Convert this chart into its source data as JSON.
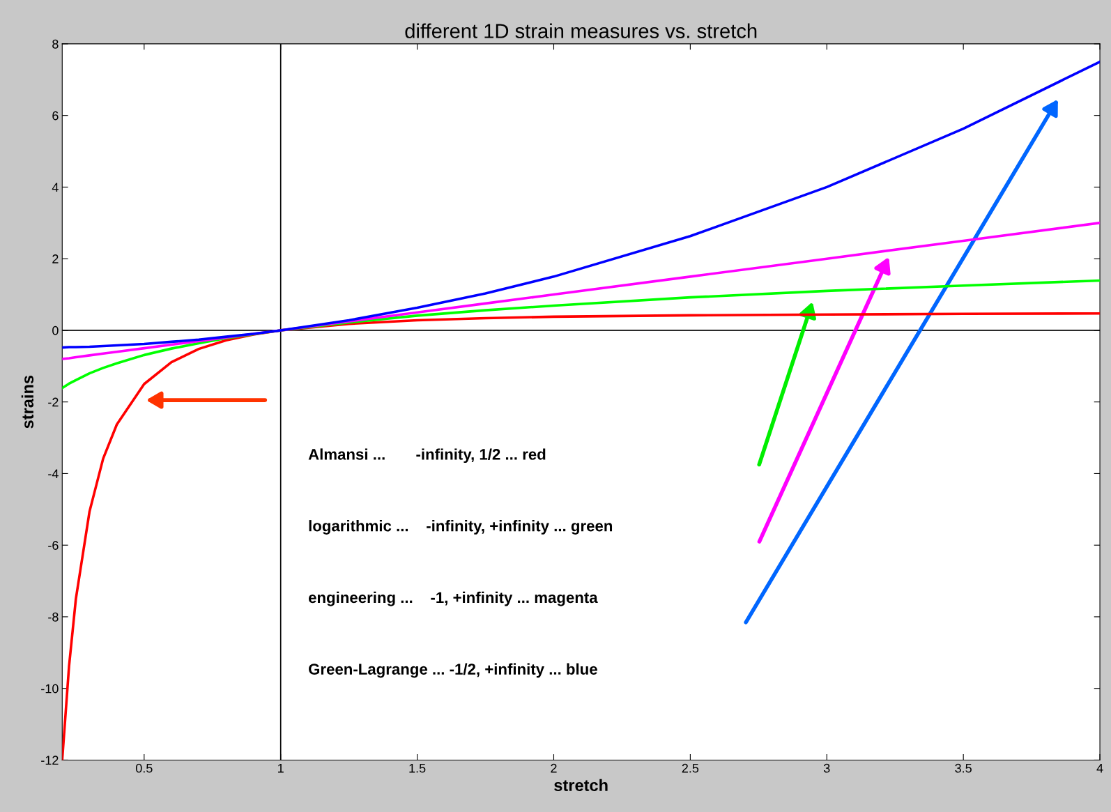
{
  "chart_data": {
    "type": "line",
    "title": "different 1D strain measures vs. stretch",
    "xlabel": "stretch",
    "ylabel": "strains",
    "x": [
      0.2,
      0.225,
      0.25,
      0.3,
      0.35,
      0.4,
      0.5,
      0.6,
      0.7,
      0.8,
      0.9,
      1,
      1.25,
      1.5,
      1.75,
      2,
      2.5,
      3,
      3.5,
      4
    ],
    "series": [
      {
        "color": "#ff0000",
        "values": [
          -12,
          -9.38,
          -7.5,
          -5.06,
          -3.58,
          -2.63,
          -1.5,
          -0.89,
          -0.52,
          -0.28,
          -0.12,
          0,
          0.18,
          0.28,
          0.34,
          0.38,
          0.42,
          0.44,
          0.46,
          0.47
        ]
      },
      {
        "color": "#00ff00",
        "values": [
          -1.61,
          -1.49,
          -1.39,
          -1.2,
          -1.05,
          -0.92,
          -0.69,
          -0.51,
          -0.36,
          -0.22,
          -0.11,
          0,
          0.22,
          0.41,
          0.56,
          0.69,
          0.92,
          1.1,
          1.25,
          1.39
        ]
      },
      {
        "color": "#ff00ff",
        "values": [
          -0.8,
          -0.78,
          -0.75,
          -0.7,
          -0.65,
          -0.6,
          -0.5,
          -0.4,
          -0.3,
          -0.2,
          -0.1,
          0,
          0.25,
          0.5,
          0.75,
          1,
          1.5,
          2,
          2.5,
          3
        ]
      },
      {
        "color": "#0000ff",
        "values": [
          -0.48,
          -0.47,
          -0.47,
          -0.46,
          -0.44,
          -0.42,
          -0.38,
          -0.32,
          -0.26,
          -0.18,
          -0.1,
          0,
          0.28,
          0.63,
          1.03,
          1.5,
          2.63,
          4,
          5.63,
          7.5
        ]
      }
    ],
    "xlim": [
      0.2,
      4
    ],
    "ylim": [
      -12,
      8
    ],
    "xticks": [
      0.5,
      1,
      1.5,
      2,
      2.5,
      3,
      3.5,
      4
    ],
    "yticks": [
      -12,
      -10,
      -8,
      -6,
      -4,
      -2,
      0,
      2,
      4,
      6,
      8
    ],
    "ref_lines": [
      {
        "axis": "x",
        "value": 1,
        "color": "#000000"
      },
      {
        "axis": "y",
        "value": 0,
        "color": "#000000"
      }
    ],
    "annotations": [
      "Almansi ...       -infinity, 1/2 ... red",
      "logarithmic ...    -infinity, +infinity ... green",
      "engineering ...    -1, +infinity ... magenta",
      "Green-Lagrange ... -1/2, +infinity ... blue"
    ],
    "grid": false,
    "legend": false,
    "marker": "none",
    "line_style": "solid"
  }
}
